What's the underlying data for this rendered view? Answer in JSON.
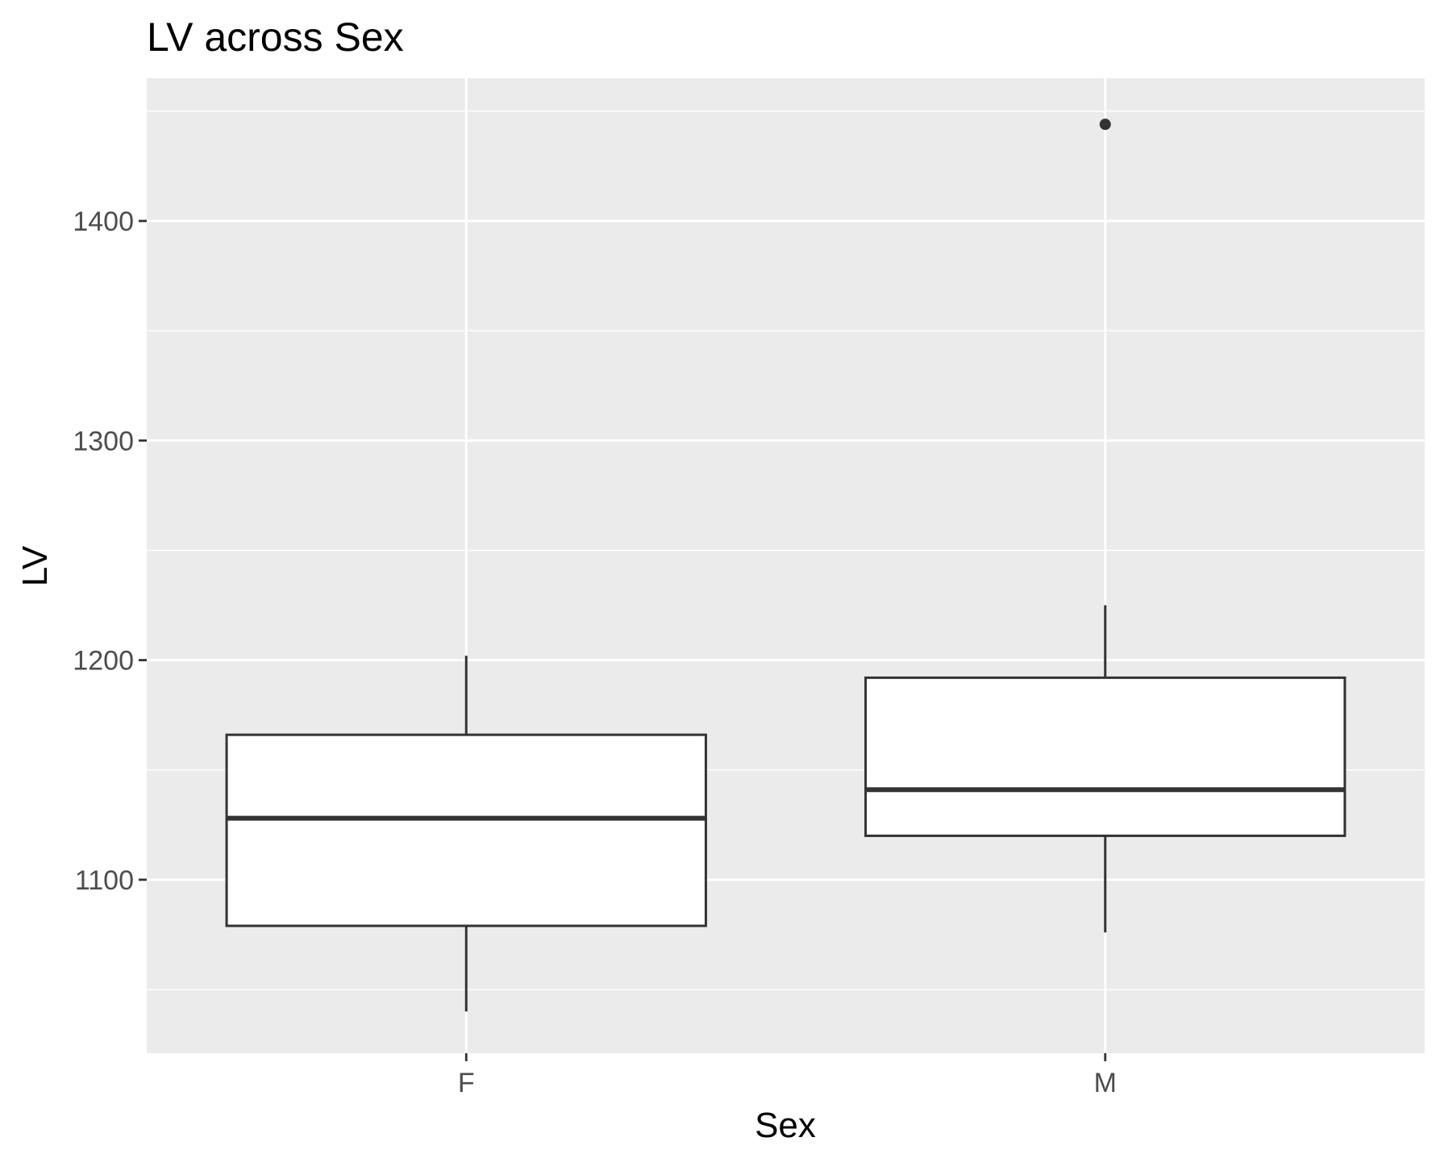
{
  "chart_data": {
    "type": "boxplot",
    "title": "LV across Sex",
    "xlabel": "Sex",
    "ylabel": "LV",
    "categories": [
      "F",
      "M"
    ],
    "boxes": [
      {
        "category": "F",
        "whisker_low": 1040,
        "q1": 1079,
        "median": 1128,
        "q3": 1166,
        "whisker_high": 1202,
        "outliers": []
      },
      {
        "category": "M",
        "whisker_low": 1076,
        "q1": 1120,
        "median": 1141,
        "q3": 1192,
        "whisker_high": 1225,
        "outliers": [
          1444
        ]
      }
    ],
    "ylim": [
      1021,
      1465
    ],
    "yticks": [
      1100,
      1200,
      1300,
      1400
    ],
    "yticks_minor": [
      1050,
      1150,
      1250,
      1350,
      1450
    ],
    "grid": true,
    "panel_background": "#ebebeb",
    "grid_color": "#ffffff",
    "box_fill": "#ffffff",
    "line_color": "#333333"
  }
}
